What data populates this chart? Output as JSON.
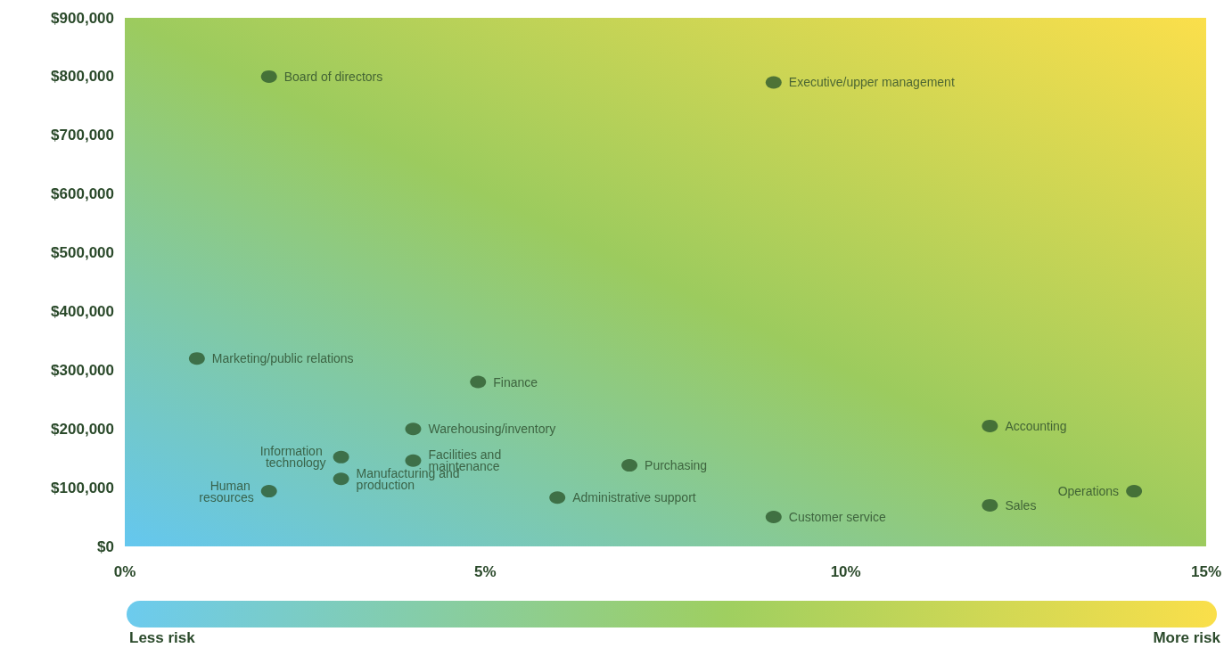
{
  "chart_data": {
    "type": "scatter",
    "marker": "circle",
    "grid": false,
    "legend": false,
    "xlim": [
      0,
      15
    ],
    "xticks": [
      {
        "value": 0,
        "label": "0%"
      },
      {
        "value": 5,
        "label": "5%"
      },
      {
        "value": 10,
        "label": "10%"
      },
      {
        "value": 15,
        "label": "15%"
      }
    ],
    "ylim": [
      0,
      900000
    ],
    "yticks": [
      {
        "value": 0,
        "label": "$0"
      },
      {
        "value": 100000,
        "label": "$100,000"
      },
      {
        "value": 200000,
        "label": "$200,000"
      },
      {
        "value": 300000,
        "label": "$300,000"
      },
      {
        "value": 400000,
        "label": "$400,000"
      },
      {
        "value": 500000,
        "label": "$500,000"
      },
      {
        "value": 600000,
        "label": "$600,000"
      },
      {
        "value": 700000,
        "label": "$700,000"
      },
      {
        "value": 800000,
        "label": "$800,000"
      },
      {
        "value": 900000,
        "label": "$900,000"
      }
    ],
    "series": [
      {
        "name": "Board of directors",
        "color": "#2e5a2e",
        "x": [
          2
        ],
        "values": [
          800000
        ]
      },
      {
        "name": "Executive/upper management",
        "color": "#2e5a2e",
        "x": [
          9
        ],
        "values": [
          790000
        ]
      },
      {
        "name": "Marketing/public relations",
        "color": "#2e5a2e",
        "x": [
          1
        ],
        "values": [
          320000
        ]
      },
      {
        "name": "Finance",
        "color": "#2e5a2e",
        "x": [
          4.9
        ],
        "values": [
          280000
        ]
      },
      {
        "name": "Warehousing/inventory",
        "color": "#2e5a2e",
        "x": [
          4
        ],
        "values": [
          200000
        ]
      },
      {
        "name": "Accounting",
        "color": "#2e5a2e",
        "x": [
          12
        ],
        "values": [
          205000
        ]
      },
      {
        "name": "Information technology",
        "color": "#2e5a2e",
        "x": [
          3
        ],
        "values": [
          152000
        ]
      },
      {
        "name": "Facilities and maintenance",
        "color": "#2e5a2e",
        "x": [
          4
        ],
        "values": [
          146000
        ]
      },
      {
        "name": "Purchasing",
        "color": "#2e5a2e",
        "x": [
          7
        ],
        "values": [
          138000
        ]
      },
      {
        "name": "Manufacturing and production",
        "color": "#2e5a2e",
        "x": [
          3
        ],
        "values": [
          115000
        ]
      },
      {
        "name": "Human resources",
        "color": "#2e5a2e",
        "x": [
          2
        ],
        "values": [
          94000
        ]
      },
      {
        "name": "Administrative support",
        "color": "#2e5a2e",
        "x": [
          6
        ],
        "values": [
          83000
        ]
      },
      {
        "name": "Operations",
        "color": "#2e5a2e",
        "x": [
          14
        ],
        "values": [
          94000
        ]
      },
      {
        "name": "Sales",
        "color": "#2e5a2e",
        "x": [
          12
        ],
        "values": [
          70000
        ]
      },
      {
        "name": "Customer service",
        "color": "#2e5a2e",
        "x": [
          9
        ],
        "values": [
          50000
        ]
      }
    ],
    "annotations": [
      "Less risk",
      "More risk"
    ]
  }
}
